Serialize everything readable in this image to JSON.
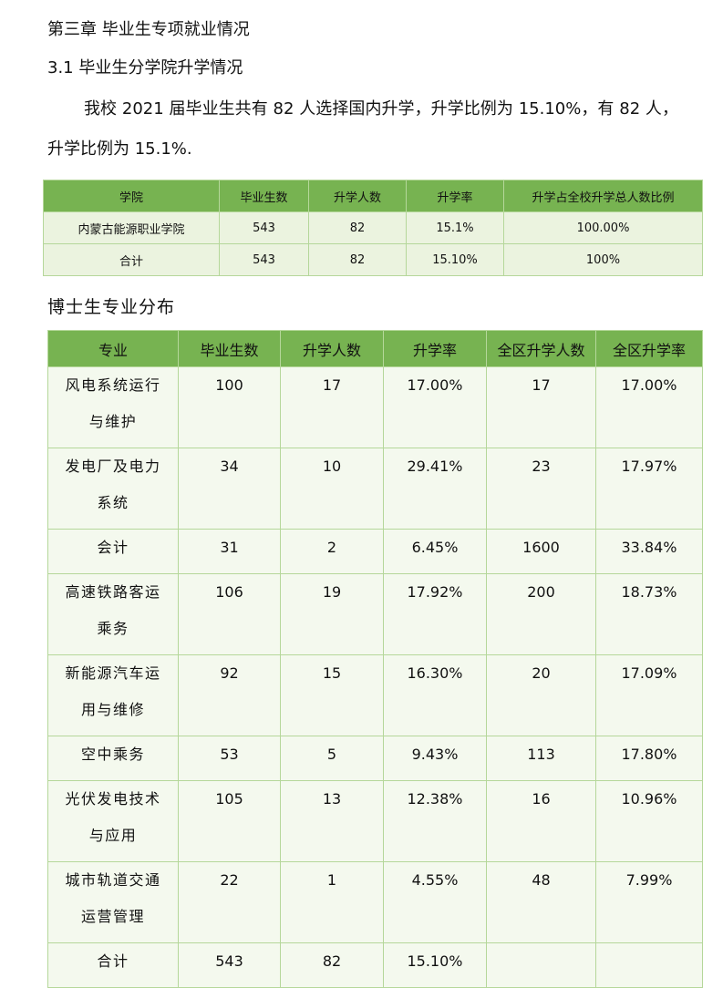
{
  "header": {
    "title": "第三章  毕业生专项就业情况",
    "subtitle": "3.1 毕业生分学院升学情况"
  },
  "paragraph": "我校 2021 届毕业生共有 82 人选择国内升学，升学比例为 15.10%，有 82 人，升学比例为 15.1%.",
  "table1": {
    "header": [
      "学院",
      "毕业生数",
      "升学人数",
      "升学率",
      "升学占全校升学总人数比例"
    ],
    "rows": [
      [
        "内蒙古能源职业学院",
        "543",
        "82",
        "15.1%",
        "100.00%"
      ],
      [
        "合计",
        "543",
        "82",
        "15.10%",
        "100%"
      ]
    ]
  },
  "caption": "博士生专业分布",
  "table2": {
    "header": [
      "专业",
      "毕业生数",
      "升学人数",
      "升学率",
      "全区升学人数",
      "全区升学率"
    ],
    "rows": [
      [
        "风电系统运行与维护",
        "100",
        "17",
        "17.00%",
        "17",
        "17.00%"
      ],
      [
        "发电厂及电力系统",
        "34",
        "10",
        "29.41%",
        "23",
        "17.97%"
      ],
      [
        "会计",
        "31",
        "2",
        "6.45%",
        "1600",
        "33.84%"
      ],
      [
        "高速铁路客运乘务",
        "106",
        "19",
        "17.92%",
        "200",
        "18.73%"
      ],
      [
        "新能源汽车运用与维修",
        "92",
        "15",
        "16.30%",
        "20",
        "17.09%"
      ],
      [
        "空中乘务",
        "53",
        "5",
        "9.43%",
        "113",
        "17.80%"
      ],
      [
        "光伏发电技术与应用",
        "105",
        "13",
        "12.38%",
        "16",
        "10.96%"
      ],
      [
        "城市轨道交通运营管理",
        "22",
        "1",
        "4.55%",
        "48",
        "7.99%"
      ],
      [
        "合计",
        "543",
        "82",
        "15.10%",
        "",
        ""
      ]
    ]
  }
}
